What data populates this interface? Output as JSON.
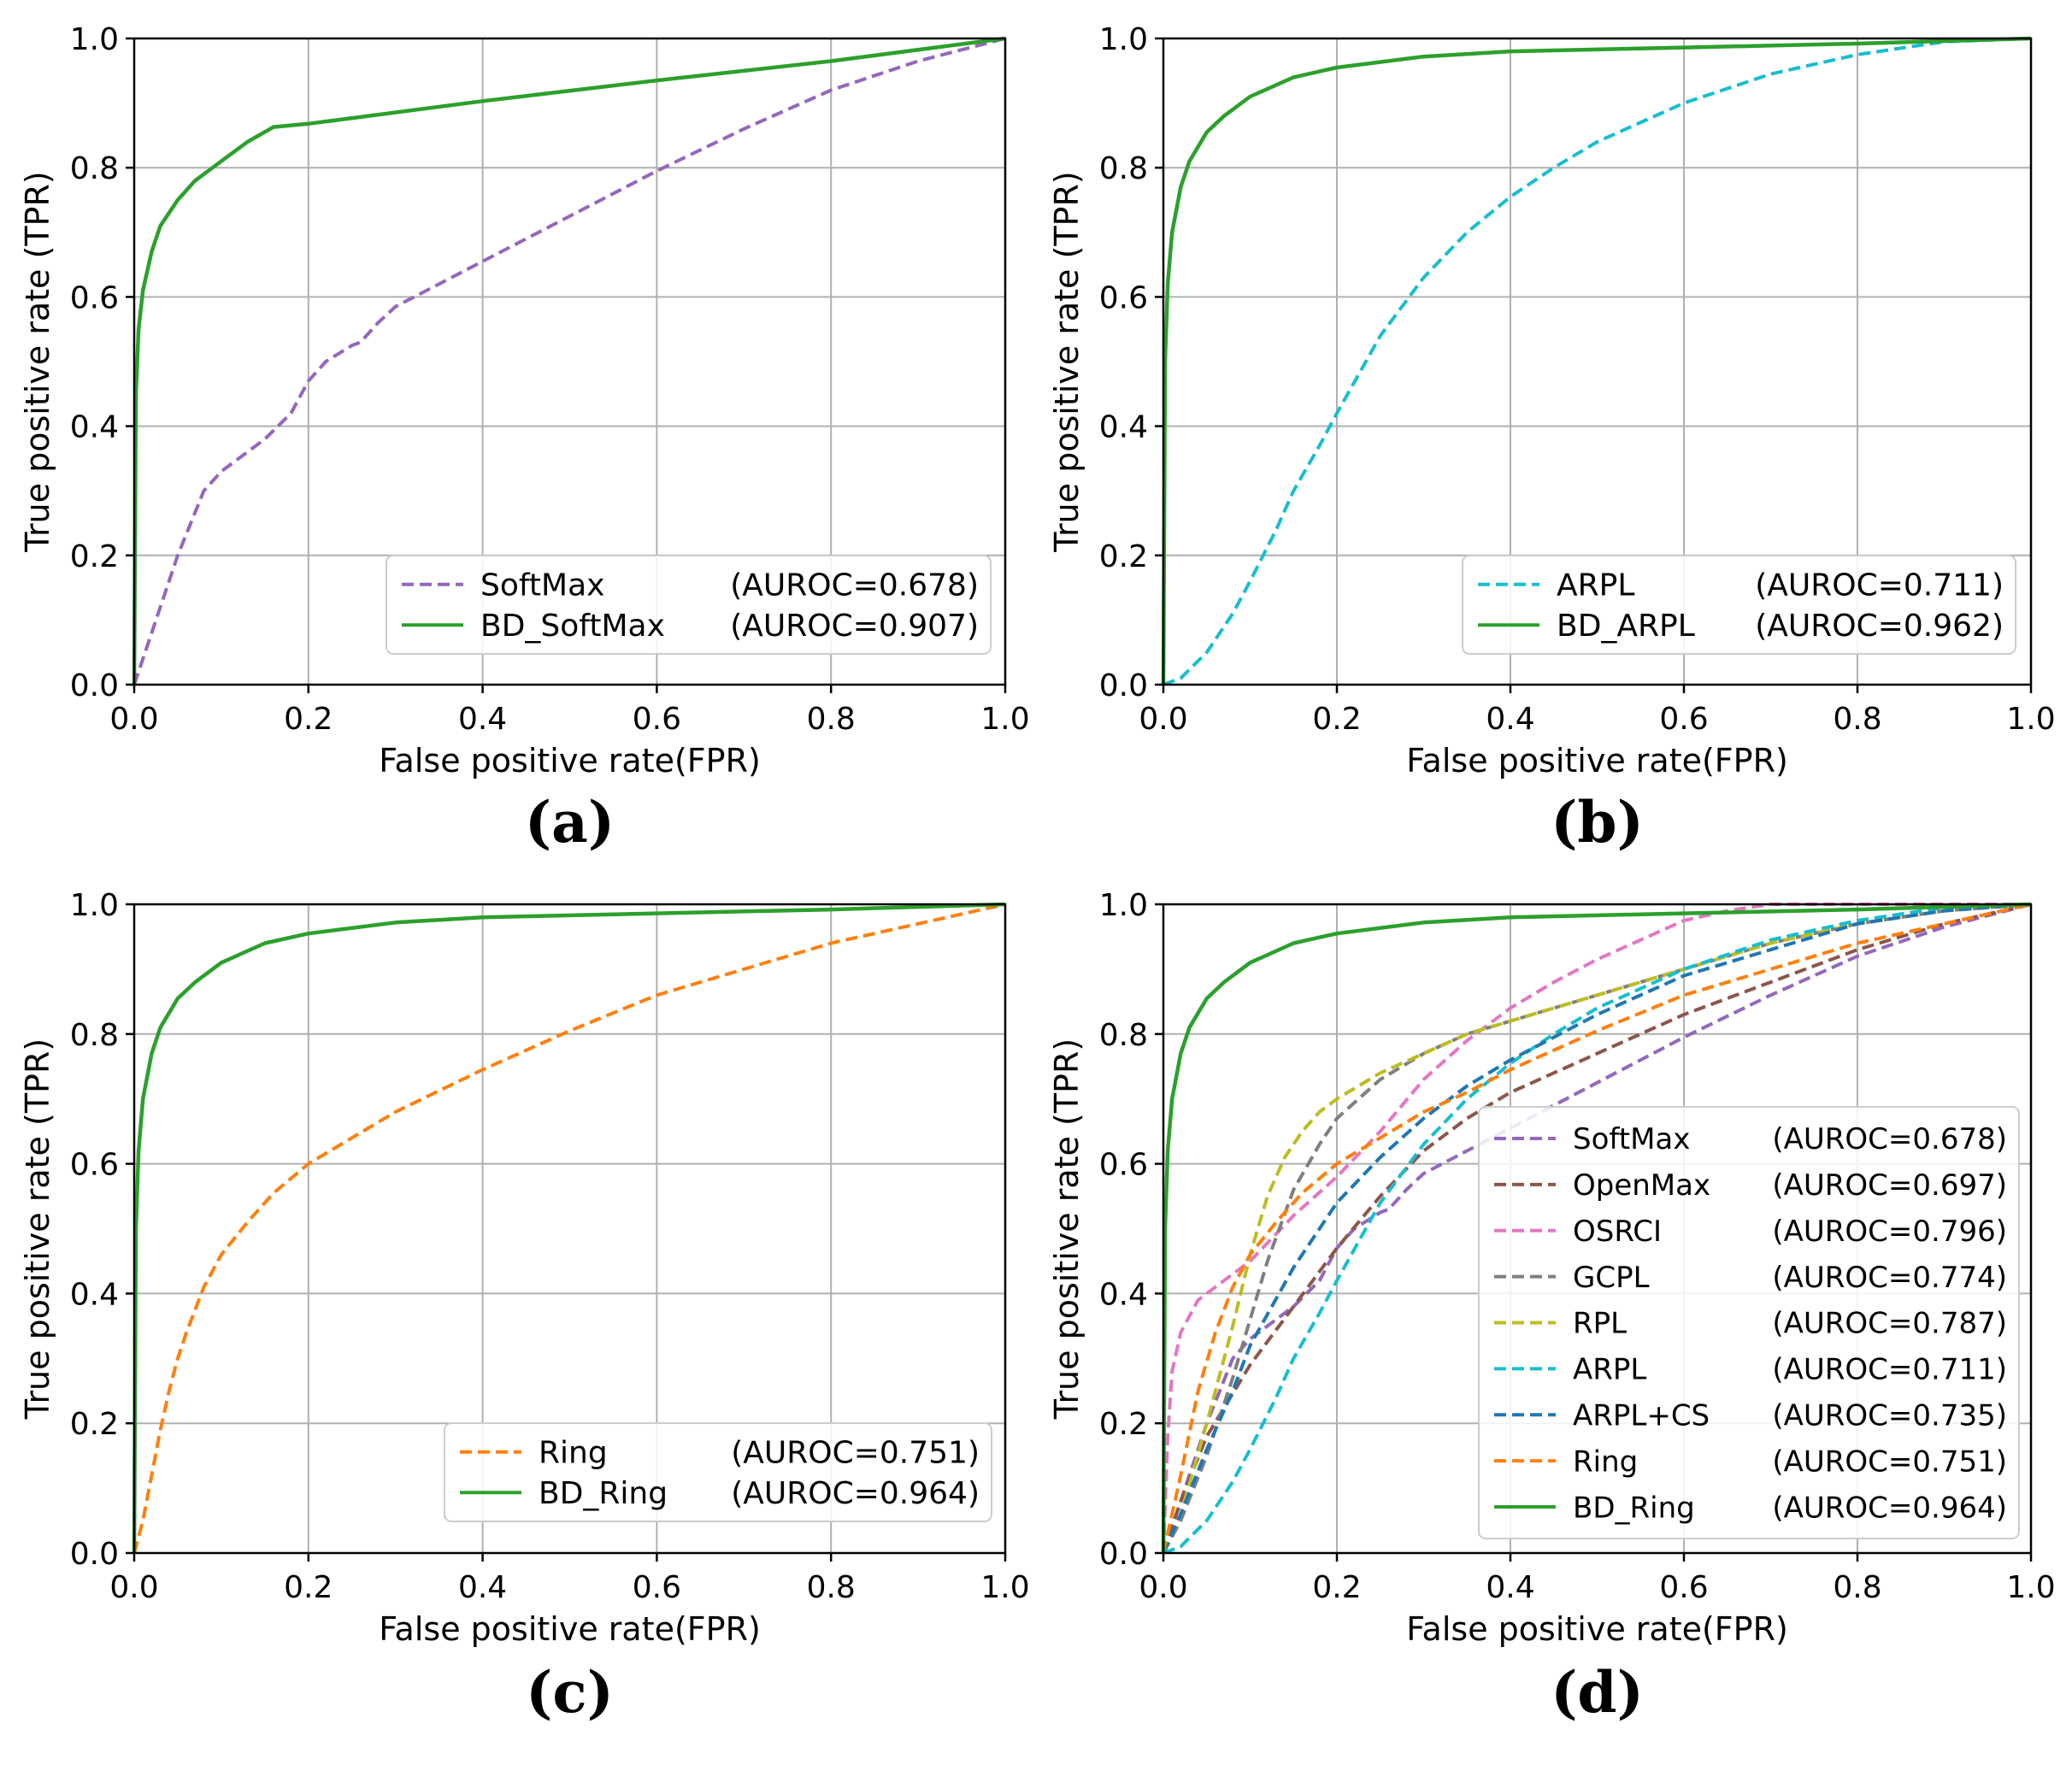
{
  "chart_data": [
    {
      "type": "line",
      "panel_label": "(a)",
      "xlabel": "False positive rate(FPR)",
      "ylabel": "True positive rate (TPR)",
      "xlim": [
        0,
        1
      ],
      "ylim": [
        0,
        1
      ],
      "xticks": [
        "0.0",
        "0.2",
        "0.4",
        "0.6",
        "0.8",
        "1.0"
      ],
      "yticks": [
        "0.0",
        "0.2",
        "0.4",
        "0.6",
        "0.8",
        "1.0"
      ],
      "grid": true,
      "legend_position": "lower-right",
      "series": [
        {
          "name": "SoftMax",
          "auroc": "(AUROC=0.678)",
          "color": "#9467bd",
          "dash": true,
          "x": [
            0,
            0.02,
            0.05,
            0.08,
            0.1,
            0.15,
            0.18,
            0.2,
            0.22,
            0.25,
            0.26,
            0.28,
            0.3,
            0.35,
            0.4,
            0.5,
            0.6,
            0.7,
            0.8,
            0.9,
            1.0
          ],
          "y": [
            0,
            0.08,
            0.2,
            0.3,
            0.33,
            0.38,
            0.42,
            0.47,
            0.5,
            0.525,
            0.53,
            0.56,
            0.585,
            0.62,
            0.655,
            0.725,
            0.795,
            0.86,
            0.92,
            0.965,
            1.0
          ]
        },
        {
          "name": "BD_SoftMax",
          "auroc": "(AUROC=0.907)",
          "color": "#2ca02c",
          "dash": false,
          "x": [
            0,
            0.002,
            0.005,
            0.01,
            0.02,
            0.03,
            0.05,
            0.07,
            0.1,
            0.13,
            0.16,
            0.2,
            0.4,
            0.6,
            0.8,
            1.0
          ],
          "y": [
            0,
            0.45,
            0.55,
            0.61,
            0.67,
            0.71,
            0.75,
            0.78,
            0.81,
            0.84,
            0.863,
            0.868,
            0.903,
            0.935,
            0.965,
            1.0
          ]
        }
      ]
    },
    {
      "type": "line",
      "panel_label": "(b)",
      "xlabel": "False positive rate(FPR)",
      "ylabel": "True positive rate (TPR)",
      "xlim": [
        0,
        1
      ],
      "ylim": [
        0,
        1
      ],
      "xticks": [
        "0.0",
        "0.2",
        "0.4",
        "0.6",
        "0.8",
        "1.0"
      ],
      "yticks": [
        "0.0",
        "0.2",
        "0.4",
        "0.6",
        "0.8",
        "1.0"
      ],
      "grid": true,
      "legend_position": "lower-right",
      "series": [
        {
          "name": "ARPL",
          "auroc": "(AUROC=0.711)",
          "color": "#17becf",
          "dash": true,
          "x": [
            0,
            0.02,
            0.05,
            0.08,
            0.1,
            0.13,
            0.15,
            0.18,
            0.2,
            0.25,
            0.3,
            0.35,
            0.4,
            0.45,
            0.5,
            0.6,
            0.7,
            0.8,
            0.9,
            1.0
          ],
          "y": [
            0,
            0.01,
            0.05,
            0.11,
            0.16,
            0.24,
            0.3,
            0.37,
            0.42,
            0.54,
            0.63,
            0.7,
            0.755,
            0.8,
            0.84,
            0.9,
            0.945,
            0.975,
            0.995,
            1.0
          ]
        },
        {
          "name": "BD_ARPL",
          "auroc": "(AUROC=0.962)",
          "color": "#2ca02c",
          "dash": false,
          "x": [
            0,
            0.002,
            0.005,
            0.01,
            0.02,
            0.03,
            0.05,
            0.07,
            0.1,
            0.15,
            0.2,
            0.3,
            0.4,
            0.6,
            0.8,
            1.0
          ],
          "y": [
            0,
            0.5,
            0.62,
            0.7,
            0.77,
            0.81,
            0.855,
            0.88,
            0.91,
            0.94,
            0.955,
            0.972,
            0.98,
            0.986,
            0.992,
            1.0
          ]
        }
      ]
    },
    {
      "type": "line",
      "panel_label": "(c)",
      "xlabel": "False positive rate(FPR)",
      "ylabel": "True positive rate (TPR)",
      "xlim": [
        0,
        1
      ],
      "ylim": [
        0,
        1
      ],
      "xticks": [
        "0.0",
        "0.2",
        "0.4",
        "0.6",
        "0.8",
        "1.0"
      ],
      "yticks": [
        "0.0",
        "0.2",
        "0.4",
        "0.6",
        "0.8",
        "1.0"
      ],
      "grid": true,
      "legend_position": "lower-right",
      "series": [
        {
          "name": "Ring",
          "auroc": "(AUROC=0.751)",
          "color": "#ff7f0e",
          "dash": true,
          "x": [
            0,
            0.01,
            0.02,
            0.03,
            0.04,
            0.05,
            0.06,
            0.08,
            0.1,
            0.13,
            0.16,
            0.2,
            0.25,
            0.3,
            0.4,
            0.5,
            0.6,
            0.7,
            0.8,
            0.9,
            1.0
          ],
          "y": [
            0,
            0.05,
            0.12,
            0.19,
            0.25,
            0.3,
            0.34,
            0.41,
            0.46,
            0.51,
            0.555,
            0.6,
            0.64,
            0.68,
            0.745,
            0.805,
            0.86,
            0.9,
            0.94,
            0.97,
            1.0
          ]
        },
        {
          "name": "BD_Ring",
          "auroc": "(AUROC=0.964)",
          "color": "#2ca02c",
          "dash": false,
          "x": [
            0,
            0.002,
            0.005,
            0.01,
            0.02,
            0.03,
            0.05,
            0.07,
            0.1,
            0.15,
            0.2,
            0.3,
            0.4,
            0.6,
            0.8,
            1.0
          ],
          "y": [
            0,
            0.5,
            0.62,
            0.7,
            0.77,
            0.81,
            0.855,
            0.88,
            0.91,
            0.94,
            0.955,
            0.972,
            0.98,
            0.986,
            0.992,
            1.0
          ]
        }
      ]
    },
    {
      "type": "line",
      "panel_label": "(d)",
      "xlabel": "False positive rate(FPR)",
      "ylabel": "True positive rate (TPR)",
      "xlim": [
        0,
        1
      ],
      "ylim": [
        0,
        1
      ],
      "xticks": [
        "0.0",
        "0.2",
        "0.4",
        "0.6",
        "0.8",
        "1.0"
      ],
      "yticks": [
        "0.0",
        "0.2",
        "0.4",
        "0.6",
        "0.8",
        "1.0"
      ],
      "grid": true,
      "legend_position": "lower-right",
      "series": [
        {
          "name": "SoftMax",
          "auroc": "(AUROC=0.678)",
          "color": "#9467bd",
          "dash": true,
          "x": [
            0,
            0.02,
            0.05,
            0.08,
            0.1,
            0.15,
            0.18,
            0.2,
            0.22,
            0.25,
            0.26,
            0.28,
            0.3,
            0.35,
            0.4,
            0.5,
            0.6,
            0.7,
            0.8,
            0.9,
            1.0
          ],
          "y": [
            0,
            0.08,
            0.2,
            0.3,
            0.33,
            0.38,
            0.42,
            0.47,
            0.5,
            0.525,
            0.53,
            0.56,
            0.585,
            0.62,
            0.655,
            0.725,
            0.795,
            0.86,
            0.92,
            0.965,
            1.0
          ]
        },
        {
          "name": "OpenMax",
          "auroc": "(AUROC=0.697)",
          "color": "#8c564b",
          "dash": true,
          "x": [
            0,
            0.02,
            0.05,
            0.1,
            0.15,
            0.2,
            0.25,
            0.3,
            0.35,
            0.4,
            0.5,
            0.6,
            0.7,
            0.8,
            0.9,
            1.0
          ],
          "y": [
            0,
            0.08,
            0.18,
            0.29,
            0.38,
            0.47,
            0.55,
            0.62,
            0.67,
            0.71,
            0.77,
            0.83,
            0.88,
            0.93,
            0.97,
            1.0
          ]
        },
        {
          "name": "OSRCI",
          "auroc": "(AUROC=0.796)",
          "color": "#e377c2",
          "dash": true,
          "x": [
            0,
            0.005,
            0.01,
            0.02,
            0.04,
            0.07,
            0.1,
            0.15,
            0.2,
            0.25,
            0.3,
            0.35,
            0.4,
            0.45,
            0.5,
            0.55,
            0.6,
            0.65,
            0.7,
            1.0
          ],
          "y": [
            0,
            0.18,
            0.28,
            0.34,
            0.39,
            0.42,
            0.45,
            0.52,
            0.58,
            0.65,
            0.73,
            0.79,
            0.84,
            0.88,
            0.915,
            0.945,
            0.975,
            0.99,
            1.0,
            1.0
          ]
        },
        {
          "name": "GCPL",
          "auroc": "(AUROC=0.774)",
          "color": "#7f7f7f",
          "dash": true,
          "x": [
            0,
            0.02,
            0.05,
            0.08,
            0.1,
            0.12,
            0.15,
            0.18,
            0.2,
            0.25,
            0.3,
            0.35,
            0.4,
            0.5,
            0.6,
            0.7,
            0.8,
            0.9,
            1.0
          ],
          "y": [
            0,
            0.05,
            0.15,
            0.27,
            0.36,
            0.45,
            0.56,
            0.63,
            0.67,
            0.73,
            0.77,
            0.8,
            0.82,
            0.86,
            0.9,
            0.94,
            0.97,
            0.99,
            1.0
          ]
        },
        {
          "name": "RPL",
          "auroc": "(AUROC=0.787)",
          "color": "#bcbd22",
          "dash": true,
          "x": [
            0,
            0.02,
            0.05,
            0.08,
            0.1,
            0.12,
            0.14,
            0.16,
            0.18,
            0.2,
            0.25,
            0.3,
            0.35,
            0.4,
            0.5,
            0.6,
            0.7,
            0.8,
            0.9,
            1.0
          ],
          "y": [
            0,
            0.06,
            0.2,
            0.35,
            0.46,
            0.55,
            0.61,
            0.65,
            0.68,
            0.7,
            0.74,
            0.77,
            0.8,
            0.82,
            0.86,
            0.9,
            0.94,
            0.97,
            0.99,
            1.0
          ]
        },
        {
          "name": "ARPL",
          "auroc": "(AUROC=0.711)",
          "color": "#17becf",
          "dash": true,
          "x": [
            0,
            0.02,
            0.05,
            0.08,
            0.1,
            0.13,
            0.15,
            0.18,
            0.2,
            0.25,
            0.3,
            0.35,
            0.4,
            0.45,
            0.5,
            0.6,
            0.7,
            0.8,
            0.9,
            1.0
          ],
          "y": [
            0,
            0.01,
            0.05,
            0.11,
            0.16,
            0.24,
            0.3,
            0.37,
            0.42,
            0.54,
            0.63,
            0.7,
            0.755,
            0.8,
            0.84,
            0.9,
            0.945,
            0.975,
            0.995,
            1.0
          ]
        },
        {
          "name": "ARPL+CS",
          "auroc": "(AUROC=0.735)",
          "color": "#1f77b4",
          "dash": true,
          "x": [
            0,
            0.02,
            0.05,
            0.08,
            0.1,
            0.15,
            0.2,
            0.25,
            0.3,
            0.35,
            0.4,
            0.5,
            0.6,
            0.7,
            0.8,
            0.9,
            1.0
          ],
          "y": [
            0,
            0.06,
            0.16,
            0.25,
            0.32,
            0.44,
            0.54,
            0.61,
            0.67,
            0.72,
            0.76,
            0.83,
            0.89,
            0.93,
            0.97,
            0.99,
            1.0
          ]
        },
        {
          "name": "Ring",
          "auroc": "(AUROC=0.751)",
          "color": "#ff7f0e",
          "dash": true,
          "x": [
            0,
            0.02,
            0.04,
            0.06,
            0.08,
            0.1,
            0.13,
            0.16,
            0.2,
            0.25,
            0.3,
            0.35,
            0.4,
            0.5,
            0.6,
            0.7,
            0.8,
            0.9,
            1.0
          ],
          "y": [
            0,
            0.12,
            0.25,
            0.34,
            0.41,
            0.46,
            0.51,
            0.555,
            0.6,
            0.64,
            0.68,
            0.71,
            0.745,
            0.805,
            0.86,
            0.9,
            0.94,
            0.97,
            1.0
          ]
        },
        {
          "name": "BD_Ring",
          "auroc": "(AUROC=0.964)",
          "color": "#2ca02c",
          "dash": false,
          "x": [
            0,
            0.002,
            0.005,
            0.01,
            0.02,
            0.03,
            0.05,
            0.07,
            0.1,
            0.15,
            0.2,
            0.3,
            0.4,
            0.6,
            0.8,
            1.0
          ],
          "y": [
            0,
            0.5,
            0.62,
            0.7,
            0.77,
            0.81,
            0.855,
            0.88,
            0.91,
            0.94,
            0.955,
            0.972,
            0.98,
            0.986,
            0.992,
            1.0
          ]
        }
      ]
    }
  ]
}
